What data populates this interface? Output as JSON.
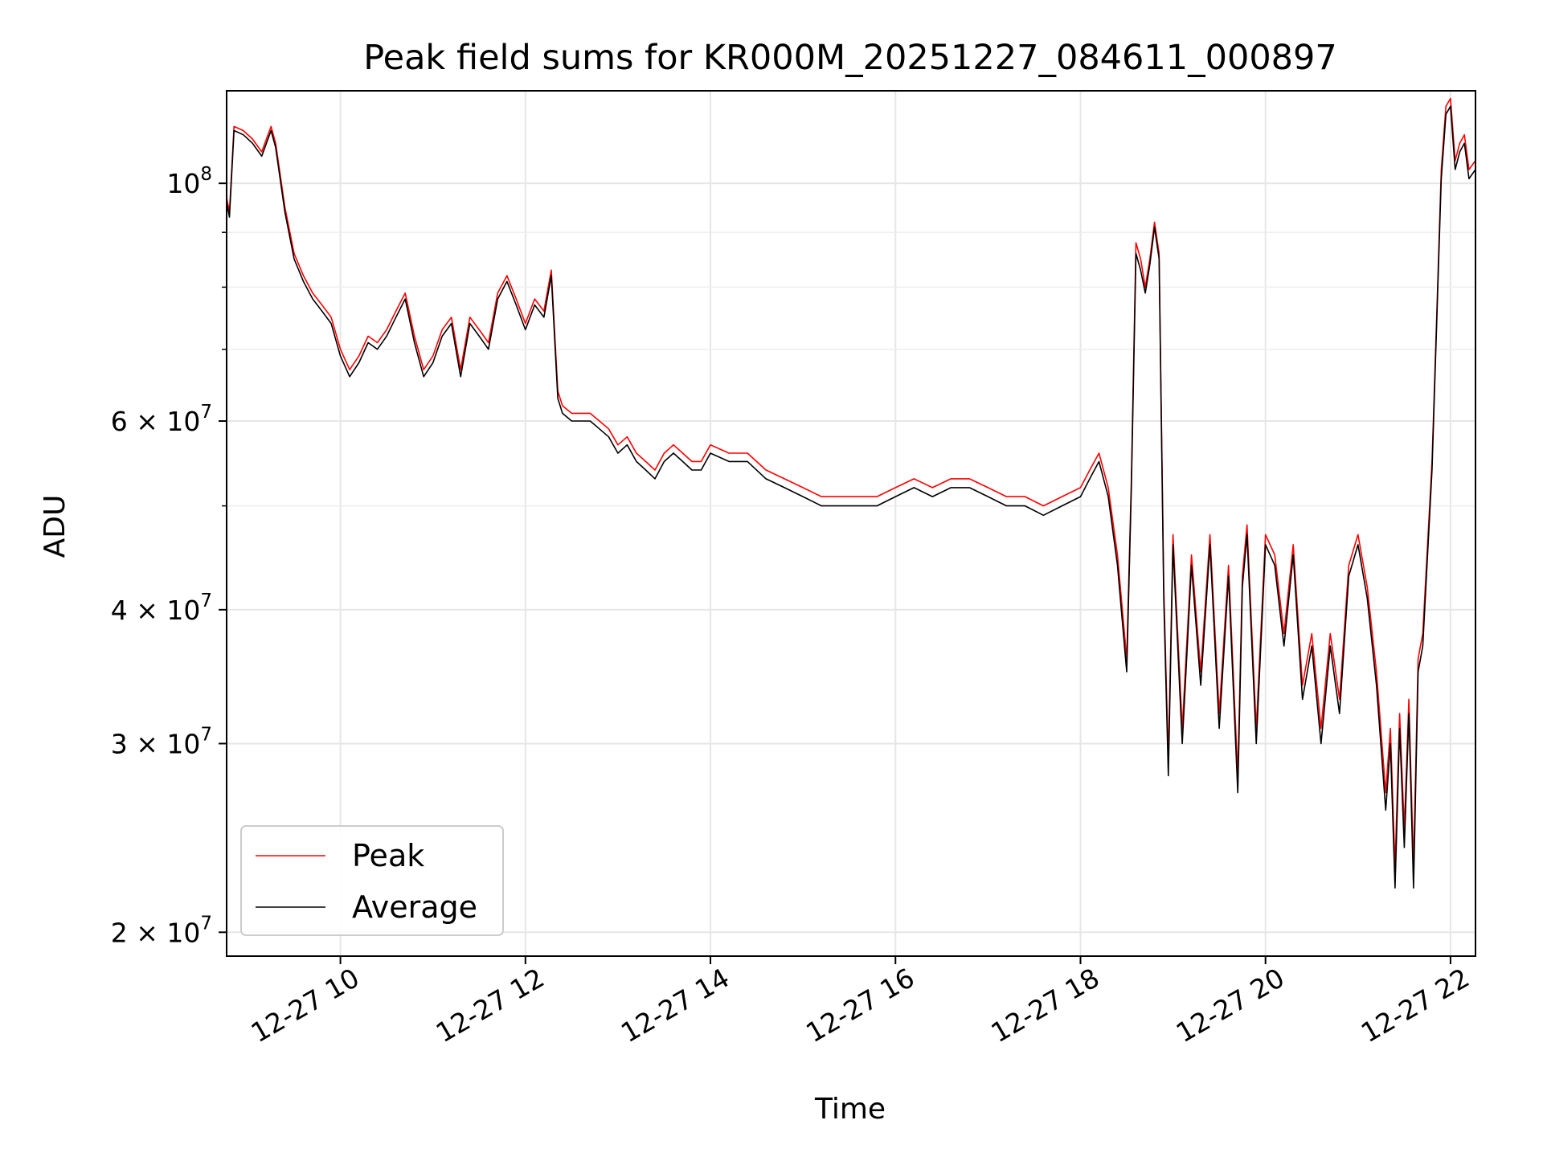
{
  "chart_data": {
    "type": "line",
    "title": "Peak field sums for KR000M_20251227_084611_000897",
    "xlabel": "Time",
    "ylabel": "ADU",
    "yscale": "log",
    "xlim": [
      8.77,
      22.27
    ],
    "ylim": [
      19000000,
      122000000
    ],
    "grid": true,
    "legend_position": "lower-left",
    "x_ticks": [
      {
        "value": 10,
        "label": "12-27 10"
      },
      {
        "value": 12,
        "label": "12-27 12"
      },
      {
        "value": 14,
        "label": "12-27 14"
      },
      {
        "value": 16,
        "label": "12-27 16"
      },
      {
        "value": 18,
        "label": "12-27 18"
      },
      {
        "value": 20,
        "label": "12-27 20"
      },
      {
        "value": 22,
        "label": "12-27 22"
      }
    ],
    "y_major_ticks": [
      {
        "value": 100000000,
        "mantissa": "",
        "base": "10",
        "exp": "8"
      },
      {
        "value": 60000000,
        "mantissa": "6",
        "base": "10",
        "exp": "7"
      },
      {
        "value": 40000000,
        "mantissa": "4",
        "base": "10",
        "exp": "7"
      },
      {
        "value": 30000000,
        "mantissa": "3",
        "base": "10",
        "exp": "7"
      },
      {
        "value": 20000000,
        "mantissa": "2",
        "base": "10",
        "exp": "7"
      }
    ],
    "y_minor_ticks": [
      50000000,
      70000000,
      80000000,
      90000000
    ],
    "series": [
      {
        "name": "Peak",
        "color": "#ff0000",
        "points": [
          [
            8.77,
            97000000
          ],
          [
            8.8,
            94000000
          ],
          [
            8.85,
            113000000
          ],
          [
            8.95,
            112000000
          ],
          [
            9.05,
            110000000
          ],
          [
            9.15,
            107000000
          ],
          [
            9.2,
            110000000
          ],
          [
            9.25,
            113000000
          ],
          [
            9.3,
            109000000
          ],
          [
            9.4,
            95000000
          ],
          [
            9.5,
            86000000
          ],
          [
            9.6,
            82000000
          ],
          [
            9.7,
            79000000
          ],
          [
            9.8,
            77000000
          ],
          [
            9.9,
            75000000
          ],
          [
            10.0,
            70000000
          ],
          [
            10.1,
            67000000
          ],
          [
            10.2,
            69000000
          ],
          [
            10.3,
            72000000
          ],
          [
            10.4,
            71000000
          ],
          [
            10.5,
            73000000
          ],
          [
            10.6,
            76000000
          ],
          [
            10.7,
            79000000
          ],
          [
            10.8,
            72000000
          ],
          [
            10.9,
            67000000
          ],
          [
            11.0,
            69000000
          ],
          [
            11.1,
            73000000
          ],
          [
            11.2,
            75000000
          ],
          [
            11.3,
            67000000
          ],
          [
            11.4,
            75000000
          ],
          [
            11.5,
            73000000
          ],
          [
            11.6,
            71000000
          ],
          [
            11.7,
            79000000
          ],
          [
            11.8,
            82000000
          ],
          [
            11.9,
            78000000
          ],
          [
            12.0,
            74000000
          ],
          [
            12.1,
            78000000
          ],
          [
            12.2,
            76000000
          ],
          [
            12.28,
            83000000
          ],
          [
            12.35,
            64000000
          ],
          [
            12.4,
            62000000
          ],
          [
            12.5,
            61000000
          ],
          [
            12.6,
            61000000
          ],
          [
            12.7,
            61000000
          ],
          [
            12.8,
            60000000
          ],
          [
            12.9,
            59000000
          ],
          [
            13.0,
            57000000
          ],
          [
            13.1,
            58000000
          ],
          [
            13.2,
            56000000
          ],
          [
            13.3,
            55000000
          ],
          [
            13.4,
            54000000
          ],
          [
            13.5,
            56000000
          ],
          [
            13.6,
            57000000
          ],
          [
            13.7,
            56000000
          ],
          [
            13.8,
            55000000
          ],
          [
            13.9,
            55000000
          ],
          [
            14.0,
            57000000
          ],
          [
            14.2,
            56000000
          ],
          [
            14.4,
            56000000
          ],
          [
            14.6,
            54000000
          ],
          [
            14.8,
            53000000
          ],
          [
            15.0,
            52000000
          ],
          [
            15.2,
            51000000
          ],
          [
            15.4,
            51000000
          ],
          [
            15.6,
            51000000
          ],
          [
            15.8,
            51000000
          ],
          [
            16.0,
            52000000
          ],
          [
            16.2,
            53000000
          ],
          [
            16.4,
            52000000
          ],
          [
            16.6,
            53000000
          ],
          [
            16.8,
            53000000
          ],
          [
            17.0,
            52000000
          ],
          [
            17.2,
            51000000
          ],
          [
            17.4,
            51000000
          ],
          [
            17.6,
            50000000
          ],
          [
            17.8,
            51000000
          ],
          [
            18.0,
            52000000
          ],
          [
            18.1,
            54000000
          ],
          [
            18.2,
            56000000
          ],
          [
            18.3,
            52000000
          ],
          [
            18.4,
            45000000
          ],
          [
            18.5,
            36000000
          ],
          [
            18.55,
            53000000
          ],
          [
            18.6,
            88000000
          ],
          [
            18.65,
            85000000
          ],
          [
            18.7,
            80000000
          ],
          [
            18.75,
            85000000
          ],
          [
            18.8,
            92000000
          ],
          [
            18.85,
            86000000
          ],
          [
            18.9,
            42000000
          ],
          [
            18.95,
            29000000
          ],
          [
            19.0,
            47000000
          ],
          [
            19.1,
            31000000
          ],
          [
            19.2,
            45000000
          ],
          [
            19.3,
            35000000
          ],
          [
            19.4,
            47000000
          ],
          [
            19.5,
            32000000
          ],
          [
            19.6,
            44000000
          ],
          [
            19.7,
            28000000
          ],
          [
            19.75,
            43000000
          ],
          [
            19.8,
            48000000
          ],
          [
            19.9,
            31000000
          ],
          [
            20.0,
            47000000
          ],
          [
            20.1,
            45000000
          ],
          [
            20.2,
            38000000
          ],
          [
            20.3,
            46000000
          ],
          [
            20.4,
            34000000
          ],
          [
            20.5,
            38000000
          ],
          [
            20.6,
            31000000
          ],
          [
            20.7,
            38000000
          ],
          [
            20.8,
            33000000
          ],
          [
            20.9,
            44000000
          ],
          [
            21.0,
            47000000
          ],
          [
            21.1,
            42000000
          ],
          [
            21.2,
            35000000
          ],
          [
            21.3,
            27000000
          ],
          [
            21.35,
            31000000
          ],
          [
            21.4,
            23000000
          ],
          [
            21.45,
            32000000
          ],
          [
            21.5,
            25000000
          ],
          [
            21.55,
            33000000
          ],
          [
            21.6,
            23000000
          ],
          [
            21.65,
            36000000
          ],
          [
            21.7,
            38000000
          ],
          [
            21.8,
            55000000
          ],
          [
            21.85,
            75000000
          ],
          [
            21.9,
            103000000
          ],
          [
            21.95,
            118000000
          ],
          [
            22.0,
            120000000
          ],
          [
            22.05,
            105000000
          ],
          [
            22.1,
            109000000
          ],
          [
            22.15,
            111000000
          ],
          [
            22.2,
            103000000
          ],
          [
            22.27,
            105000000
          ]
        ]
      },
      {
        "name": "Average",
        "color": "#000000",
        "points": [
          [
            8.77,
            96000000
          ],
          [
            8.8,
            93000000
          ],
          [
            8.85,
            112000000
          ],
          [
            8.95,
            111000000
          ],
          [
            9.05,
            109000000
          ],
          [
            9.15,
            106000000
          ],
          [
            9.2,
            109000000
          ],
          [
            9.25,
            112000000
          ],
          [
            9.3,
            108000000
          ],
          [
            9.4,
            94000000
          ],
          [
            9.5,
            85000000
          ],
          [
            9.6,
            81000000
          ],
          [
            9.7,
            78000000
          ],
          [
            9.8,
            76000000
          ],
          [
            9.9,
            74000000
          ],
          [
            10.0,
            69000000
          ],
          [
            10.1,
            66000000
          ],
          [
            10.2,
            68000000
          ],
          [
            10.3,
            71000000
          ],
          [
            10.4,
            70000000
          ],
          [
            10.5,
            72000000
          ],
          [
            10.6,
            75000000
          ],
          [
            10.7,
            78000000
          ],
          [
            10.8,
            71000000
          ],
          [
            10.9,
            66000000
          ],
          [
            11.0,
            68000000
          ],
          [
            11.1,
            72000000
          ],
          [
            11.2,
            74000000
          ],
          [
            11.3,
            66000000
          ],
          [
            11.4,
            74000000
          ],
          [
            11.5,
            72000000
          ],
          [
            11.6,
            70000000
          ],
          [
            11.7,
            78000000
          ],
          [
            11.8,
            81000000
          ],
          [
            11.9,
            77000000
          ],
          [
            12.0,
            73000000
          ],
          [
            12.1,
            77000000
          ],
          [
            12.2,
            75000000
          ],
          [
            12.28,
            82000000
          ],
          [
            12.35,
            63000000
          ],
          [
            12.4,
            61000000
          ],
          [
            12.5,
            60000000
          ],
          [
            12.6,
            60000000
          ],
          [
            12.7,
            60000000
          ],
          [
            12.8,
            59000000
          ],
          [
            12.9,
            58000000
          ],
          [
            13.0,
            56000000
          ],
          [
            13.1,
            57000000
          ],
          [
            13.2,
            55000000
          ],
          [
            13.3,
            54000000
          ],
          [
            13.4,
            53000000
          ],
          [
            13.5,
            55000000
          ],
          [
            13.6,
            56000000
          ],
          [
            13.7,
            55000000
          ],
          [
            13.8,
            54000000
          ],
          [
            13.9,
            54000000
          ],
          [
            14.0,
            56000000
          ],
          [
            14.2,
            55000000
          ],
          [
            14.4,
            55000000
          ],
          [
            14.6,
            53000000
          ],
          [
            14.8,
            52000000
          ],
          [
            15.0,
            51000000
          ],
          [
            15.2,
            50000000
          ],
          [
            15.4,
            50000000
          ],
          [
            15.6,
            50000000
          ],
          [
            15.8,
            50000000
          ],
          [
            16.0,
            51000000
          ],
          [
            16.2,
            52000000
          ],
          [
            16.4,
            51000000
          ],
          [
            16.6,
            52000000
          ],
          [
            16.8,
            52000000
          ],
          [
            17.0,
            51000000
          ],
          [
            17.2,
            50000000
          ],
          [
            17.4,
            50000000
          ],
          [
            17.6,
            49000000
          ],
          [
            17.8,
            50000000
          ],
          [
            18.0,
            51000000
          ],
          [
            18.1,
            53000000
          ],
          [
            18.2,
            55000000
          ],
          [
            18.3,
            51000000
          ],
          [
            18.4,
            44000000
          ],
          [
            18.5,
            35000000
          ],
          [
            18.55,
            52000000
          ],
          [
            18.6,
            86000000
          ],
          [
            18.65,
            83000000
          ],
          [
            18.7,
            79000000
          ],
          [
            18.75,
            84000000
          ],
          [
            18.8,
            91000000
          ],
          [
            18.85,
            85000000
          ],
          [
            18.9,
            41000000
          ],
          [
            18.95,
            28000000
          ],
          [
            19.0,
            46000000
          ],
          [
            19.1,
            30000000
          ],
          [
            19.2,
            44000000
          ],
          [
            19.3,
            34000000
          ],
          [
            19.4,
            46000000
          ],
          [
            19.5,
            31000000
          ],
          [
            19.6,
            43000000
          ],
          [
            19.7,
            27000000
          ],
          [
            19.75,
            42000000
          ],
          [
            19.8,
            47000000
          ],
          [
            19.9,
            30000000
          ],
          [
            20.0,
            46000000
          ],
          [
            20.1,
            44000000
          ],
          [
            20.2,
            37000000
          ],
          [
            20.3,
            45000000
          ],
          [
            20.4,
            33000000
          ],
          [
            20.5,
            37000000
          ],
          [
            20.6,
            30000000
          ],
          [
            20.7,
            37000000
          ],
          [
            20.8,
            32000000
          ],
          [
            20.9,
            43000000
          ],
          [
            21.0,
            46000000
          ],
          [
            21.1,
            41000000
          ],
          [
            21.2,
            34000000
          ],
          [
            21.3,
            26000000
          ],
          [
            21.35,
            30000000
          ],
          [
            21.4,
            22000000
          ],
          [
            21.45,
            31000000
          ],
          [
            21.5,
            24000000
          ],
          [
            21.55,
            32000000
          ],
          [
            21.6,
            22000000
          ],
          [
            21.65,
            35000000
          ],
          [
            21.7,
            37000000
          ],
          [
            21.8,
            54000000
          ],
          [
            21.85,
            74000000
          ],
          [
            21.9,
            101000000
          ],
          [
            21.95,
            116000000
          ],
          [
            22.0,
            118000000
          ],
          [
            22.05,
            103000000
          ],
          [
            22.1,
            107000000
          ],
          [
            22.15,
            109000000
          ],
          [
            22.2,
            101000000
          ],
          [
            22.27,
            103000000
          ]
        ]
      }
    ]
  }
}
